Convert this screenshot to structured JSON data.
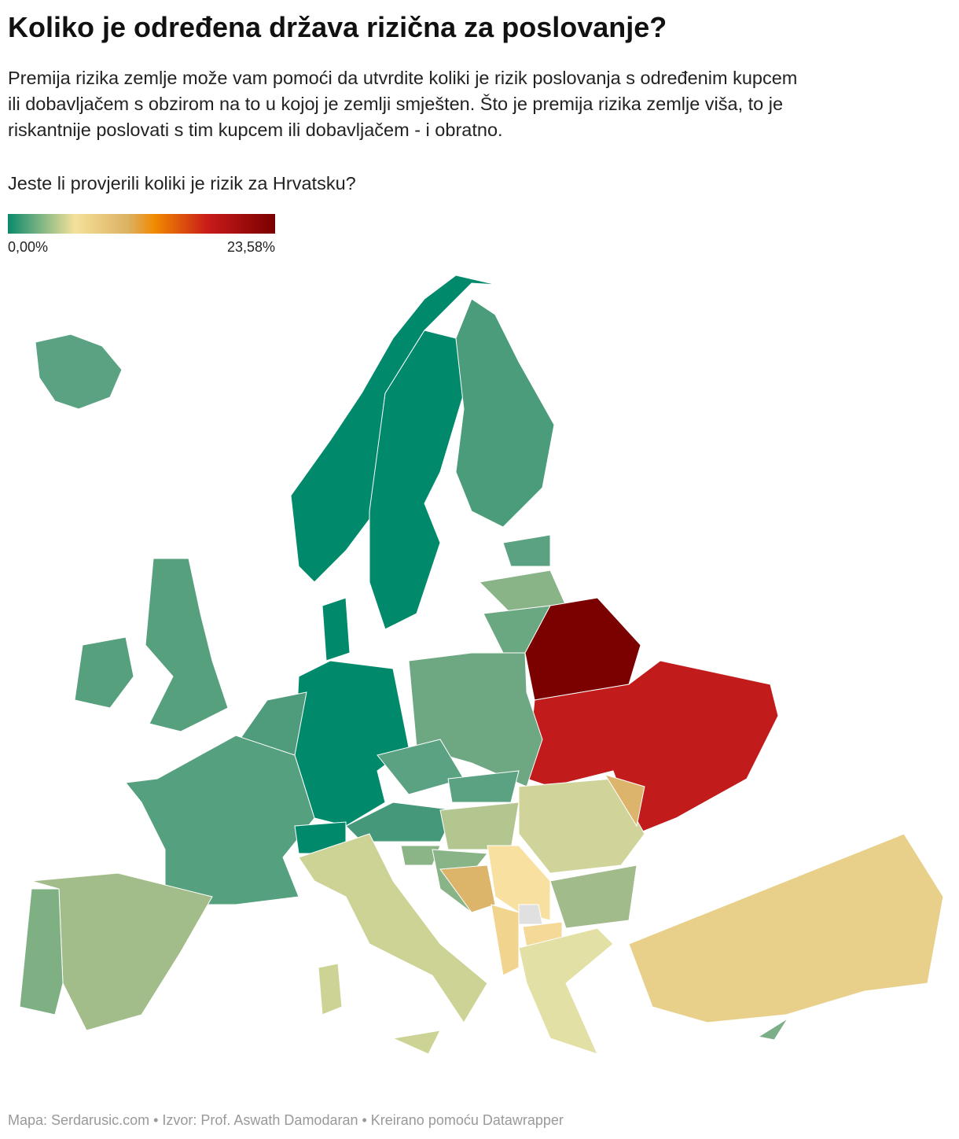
{
  "header": {
    "title": "Koliko je određena država rizična za poslovanje?",
    "description": [
      "Premija rizika zemlje može vam pomoći da utvrdite koliki je rizik poslovanja s određenim kupcem",
      "ili dobavljačem s obzirom na to u kojoj je zemlji smješten. Što je premija rizika zemlje viša, to je",
      "riskantnije poslovati s tim kupcem ili dobavljačem - i obratno."
    ],
    "question": "Jeste li provjerili koliki je rizik za Hrvatsku?"
  },
  "legend": {
    "min_label": "0,00%",
    "max_label": "23,58%"
  },
  "footer": "Mapa: Serdarusic.com • Izvor: Prof. Aswath Damodaran • Kreirano pomoću Datawrapper"
}
